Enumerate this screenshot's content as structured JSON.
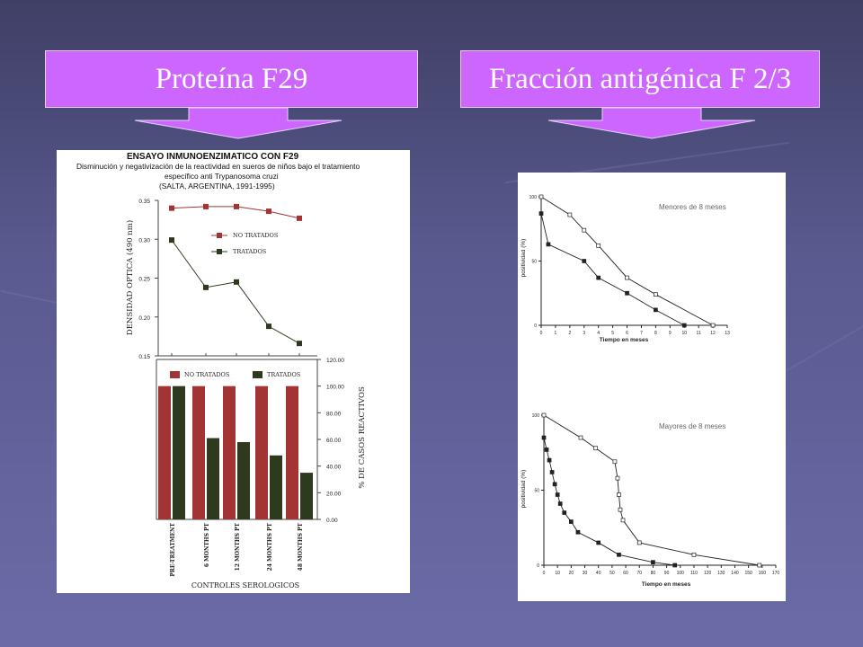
{
  "banners": {
    "left": "Proteína F29",
    "right": "Fracción antigénica F 2/3"
  },
  "colors": {
    "banner": "#cc66ff",
    "arrow": "#cc66ff",
    "no_tratados": "#a33434",
    "tratados": "#2d3a1e"
  },
  "f29": {
    "title": "ENSAYO INMUNOENZIMATICO CON F29",
    "subtitle_1": "Disminución y negativización de la reactividad en sueros de niños bajo el tratamiento",
    "subtitle_2": "específico anti Trypanosoma cruzi",
    "subtitle_3": "(SALTA, ARGENTINA, 1991-1995)",
    "xlabel": "CONTROLES SEROLOGICOS"
  },
  "chart_data": [
    {
      "type": "line",
      "categories": [
        "PRE-TREATMENT",
        "6 MONTHS PT",
        "12 MONTHS PT",
        "24 MONTHS PT",
        "48 MONTHS PT"
      ],
      "ylabel": "DENSIDAD OPTICA (490 nm)",
      "ylim": [
        0.15,
        0.35
      ],
      "yticks": [
        "0.35",
        "0.30",
        "0.25",
        "0.20",
        "0.15"
      ],
      "series": [
        {
          "name": "NO TRATADOS",
          "values": [
            0.34,
            0.342,
            0.342,
            0.336,
            0.327
          ]
        },
        {
          "name": "TRATADOS",
          "values": [
            0.299,
            0.238,
            0.245,
            0.188,
            0.166
          ]
        }
      ]
    },
    {
      "type": "bar",
      "categories": [
        "PRE-TREATMENT",
        "6 MONTHS PT",
        "12 MONTHS PT",
        "24 MONTHS PT",
        "48 MONTHS PT"
      ],
      "ylabel": "% DE CASOS REACTIVOS",
      "ylim": [
        0,
        120
      ],
      "yticks": [
        "120.00",
        "100.00",
        "80.00",
        "60.00",
        "40.00",
        "20.00",
        "0.00"
      ],
      "series": [
        {
          "name": "NO TRATADOS",
          "values": [
            100,
            100,
            100,
            100,
            100
          ]
        },
        {
          "name": "TRATADOS",
          "values": [
            100,
            61,
            58,
            48,
            35
          ]
        }
      ]
    },
    {
      "type": "line",
      "annotation": "Menores de 8 meses",
      "xlabel": "Tiempo en meses",
      "ylabel": "positividad (%)",
      "xlim": [
        0,
        13
      ],
      "ylim": [
        0,
        100
      ],
      "xticks": [
        "0",
        "1",
        "2",
        "3",
        "4",
        "5",
        "6",
        "7",
        "8",
        "9",
        "10",
        "11",
        "12",
        "13"
      ],
      "yticks": [
        "100",
        "50",
        "0"
      ],
      "series": [
        {
          "marker": "open",
          "x": [
            0,
            2,
            3,
            4,
            6,
            8,
            12
          ],
          "y": [
            100,
            86,
            74,
            62,
            37,
            24,
            0
          ]
        },
        {
          "marker": "filled",
          "x": [
            0,
            0.5,
            3,
            4,
            6,
            8,
            10
          ],
          "y": [
            87,
            63,
            50,
            37,
            25,
            12,
            0
          ]
        }
      ]
    },
    {
      "type": "line",
      "annotation": "Mayores de 8 meses",
      "xlabel": "Tiempo en meses",
      "ylabel": "positividad (%)",
      "xlim": [
        0,
        170
      ],
      "ylim": [
        0,
        100
      ],
      "xticks": [
        "0",
        "10",
        "20",
        "30",
        "40",
        "50",
        "60",
        "70",
        "80",
        "90",
        "100",
        "110",
        "120",
        "130",
        "140",
        "150",
        "160",
        "170"
      ],
      "yticks": [
        "100",
        "50",
        "0"
      ],
      "series": [
        {
          "marker": "open",
          "x": [
            0,
            27,
            38,
            52,
            54,
            55,
            56,
            58,
            70,
            110,
            158
          ],
          "y": [
            100,
            85,
            78,
            69,
            58,
            47,
            37,
            30,
            15,
            7,
            0
          ]
        },
        {
          "marker": "filled",
          "x": [
            0,
            2,
            4,
            6,
            8,
            10,
            12,
            15,
            20,
            25,
            40,
            55,
            80,
            96
          ],
          "y": [
            85,
            77,
            70,
            62,
            54,
            47,
            41,
            35,
            29,
            22,
            15,
            7,
            2,
            0
          ]
        }
      ]
    }
  ]
}
